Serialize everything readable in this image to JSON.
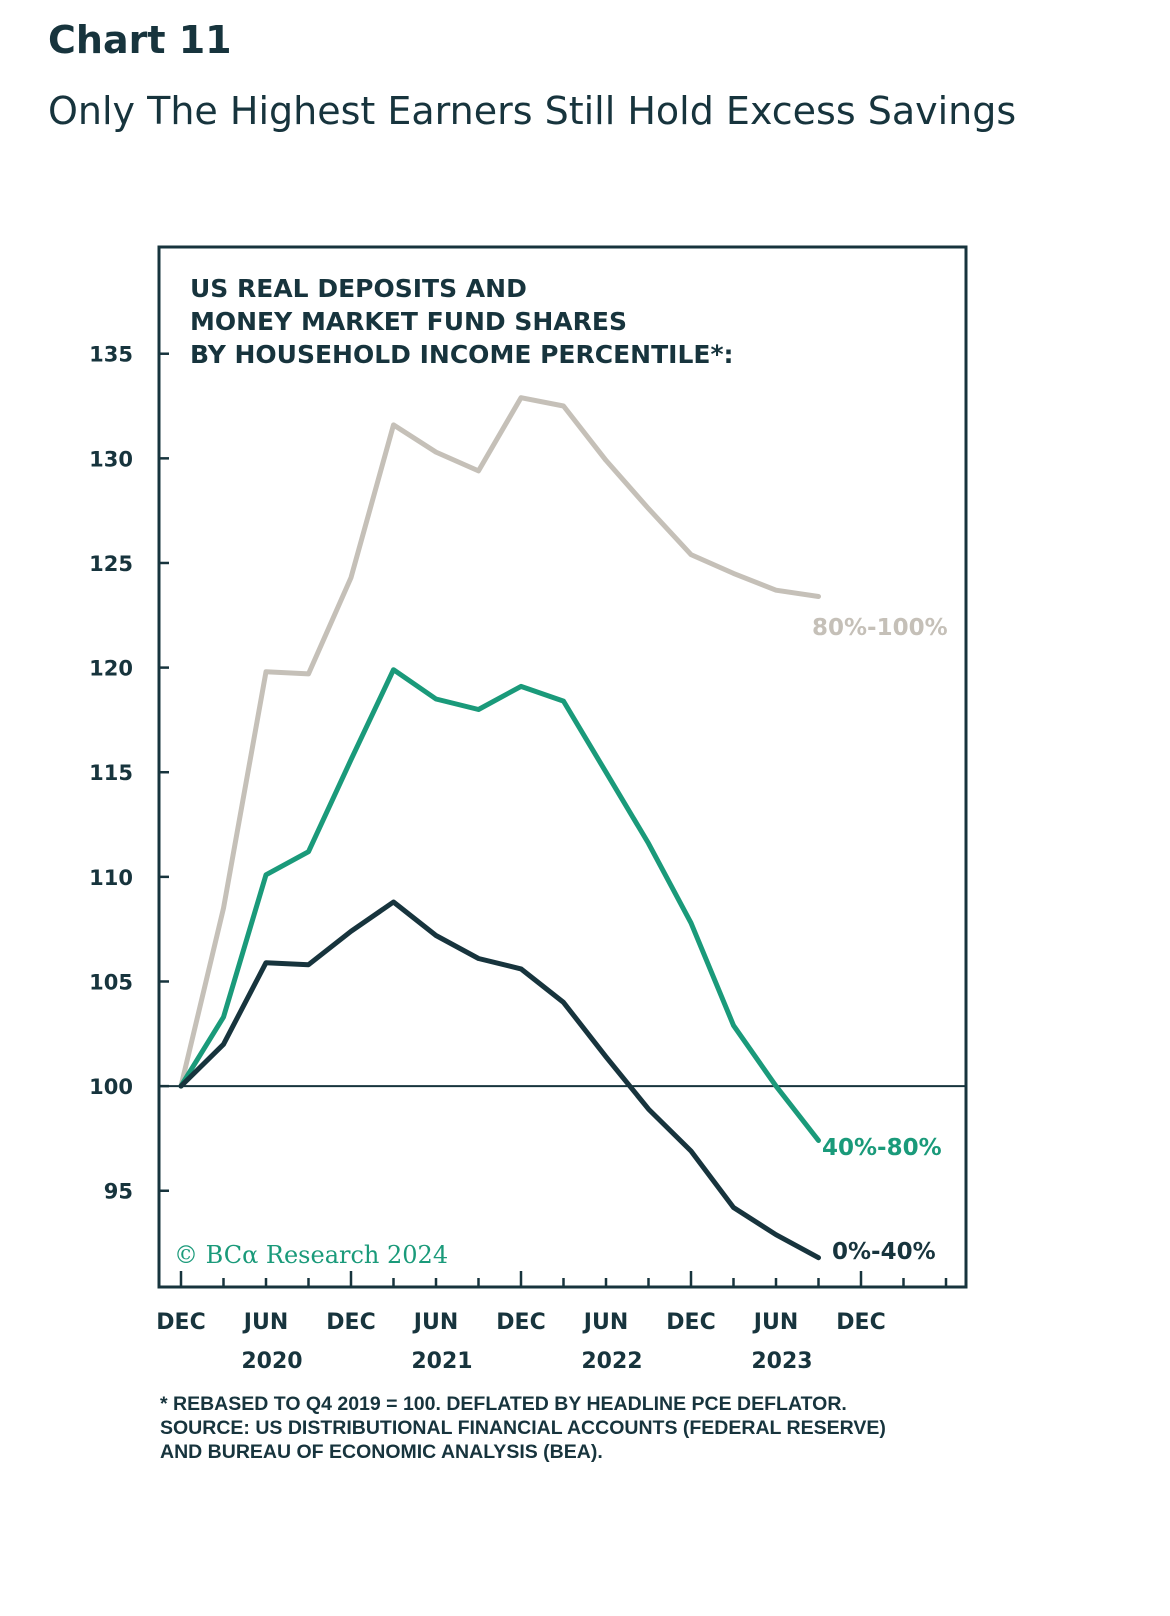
{
  "header": {
    "chart_number": "Chart 11",
    "title": "Only The Highest Earners Still Hold Excess Savings"
  },
  "chart_data": {
    "type": "line",
    "title_lines": [
      "US REAL DEPOSITS AND",
      "MONEY MARKET FUND SHARES",
      "BY HOUSEHOLD INCOME PERCENTILE*:"
    ],
    "x": [
      "2019-12",
      "2020-03",
      "2020-06",
      "2020-09",
      "2020-12",
      "2021-03",
      "2021-06",
      "2021-09",
      "2021-12",
      "2022-03",
      "2022-06",
      "2022-09",
      "2022-12",
      "2023-03",
      "2023-06",
      "2023-09"
    ],
    "series": [
      {
        "name": "80%-100%",
        "color": "#c5c0b8",
        "values": [
          100,
          108.5,
          119.8,
          119.7,
          124.3,
          131.6,
          130.3,
          129.4,
          132.9,
          132.5,
          129.9,
          127.6,
          125.4,
          124.5,
          123.7,
          123.4
        ]
      },
      {
        "name": "40%-80%",
        "color": "#1a9a7a",
        "values": [
          100,
          103.3,
          110.1,
          111.2,
          115.6,
          119.9,
          118.5,
          118.0,
          119.1,
          118.4,
          115.0,
          111.6,
          107.8,
          102.9,
          100.0,
          97.4
        ]
      },
      {
        "name": "0%-40%",
        "color": "#17343d",
        "values": [
          100,
          102.0,
          105.9,
          105.8,
          107.4,
          108.8,
          107.2,
          106.1,
          105.6,
          104.0,
          101.4,
          98.9,
          96.9,
          94.2,
          92.9,
          91.8
        ]
      }
    ],
    "yticks": [
      95,
      100,
      105,
      110,
      115,
      120,
      125,
      130,
      135
    ],
    "ylim": [
      90.4,
      140.1
    ],
    "baseline": 100,
    "xtick_labels": [
      "DEC",
      "JUN",
      "DEC",
      "JUN",
      "DEC",
      "JUN",
      "DEC",
      "JUN",
      "DEC"
    ],
    "year_labels": [
      "2020",
      "2021",
      "2022",
      "2023"
    ],
    "copyright": "© BCα Research 2024",
    "footnote_lines": [
      "* REBASED TO Q4 2019 = 100. DEFLATED BY HEADLINE PCE DEFLATOR.",
      "SOURCE: US DISTRIBUTIONAL FINANCIAL ACCOUNTS (FEDERAL RESERVE)",
      "AND BUREAU OF ECONOMIC ANALYSIS (BEA)."
    ]
  }
}
